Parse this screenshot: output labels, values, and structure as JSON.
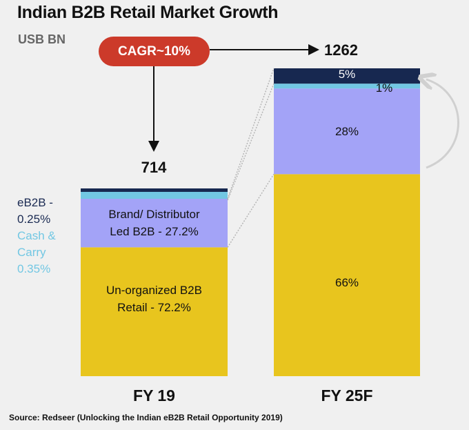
{
  "chart_data": {
    "type": "bar",
    "subtype": "stacked-100",
    "title": "Indian B2B Retail Market Growth",
    "unit_label": "USB BN",
    "annotation": "CAGR~10%",
    "categories": [
      "FY 19",
      "FY 25F"
    ],
    "totals": [
      714,
      1262
    ],
    "series": [
      {
        "name": "Un-organized B2B Retail",
        "color": "#e8c51e",
        "values": [
          72.2,
          66
        ],
        "labels": [
          "Un-organized B2B\nRetail - 72.2%",
          "66%"
        ]
      },
      {
        "name": "Brand/ Distributor Led B2B",
        "color": "#a3a3f7",
        "values": [
          27.2,
          28
        ],
        "labels": [
          "Brand/ Distributor\nLed B2B - 27.2%",
          "28%"
        ]
      },
      {
        "name": "Cash & Carry",
        "color": "#72c7e3",
        "values": [
          0.35,
          1
        ],
        "labels": [
          "",
          "1%"
        ]
      },
      {
        "name": "eB2B",
        "color": "#172850",
        "values": [
          0.25,
          5
        ],
        "labels": [
          "",
          "5%"
        ]
      }
    ],
    "side_notes": [
      {
        "text": "eB2B -\n0.25%",
        "color": "#172850"
      },
      {
        "text": "Cash &\nCarry\n0.35%",
        "color": "#72c7e3"
      }
    ],
    "source": "Source: Redseer (Unlocking the Indian eB2B Retail Opportunity 2019)"
  }
}
